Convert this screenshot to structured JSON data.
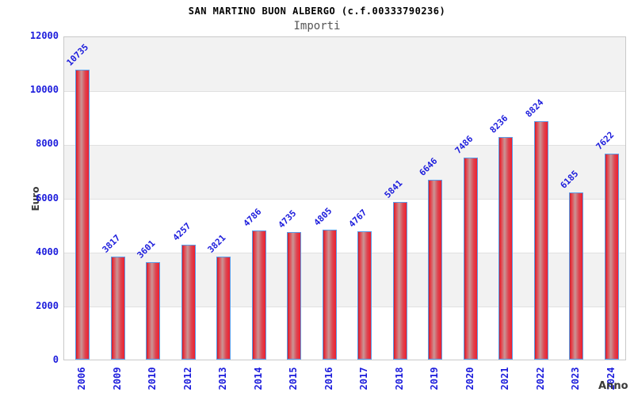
{
  "header": {
    "title": "SAN MARTINO BUON ALBERGO (c.f.00333790236)",
    "subtitle": "Importi"
  },
  "chart_data": {
    "type": "bar",
    "categories": [
      "2006",
      "2009",
      "2010",
      "2012",
      "2013",
      "2014",
      "2015",
      "2016",
      "2017",
      "2018",
      "2019",
      "2020",
      "2021",
      "2022",
      "2023",
      "2024"
    ],
    "values": [
      10735,
      3817,
      3601,
      4257,
      3821,
      4786,
      4735,
      4805,
      4767,
      5841,
      6646,
      7486,
      8236,
      8824,
      6185,
      7622
    ],
    "title": "SAN MARTINO BUON ALBERGO (c.f.00333790236)",
    "subtitle": "Importi",
    "xlabel": "Anno",
    "ylabel": "Euro",
    "ylim": [
      0,
      12000
    ],
    "yticks": [
      0,
      2000,
      4000,
      6000,
      8000,
      10000,
      12000
    ],
    "grid": "horizontal-bands-alternating",
    "legend": "none",
    "bar_labels_rotation_deg": -45,
    "xtick_rotation_deg": -90
  },
  "colors": {
    "background": "#ffffff",
    "axis_text_blue": "#1c1cdc",
    "title_text": "#000000",
    "subtitle_text": "#555555",
    "axis_title_text": "#3a3a3a",
    "band_gray": "#f2f2f2",
    "grid_line": "#e0e0e0",
    "plot_border": "#c9c9c9",
    "bar_border_blue": "#5a9ce8",
    "bar_red": "#ef1f2e",
    "bar_red_dark": "#c01f2c",
    "bar_highlight": "#ca9595"
  }
}
